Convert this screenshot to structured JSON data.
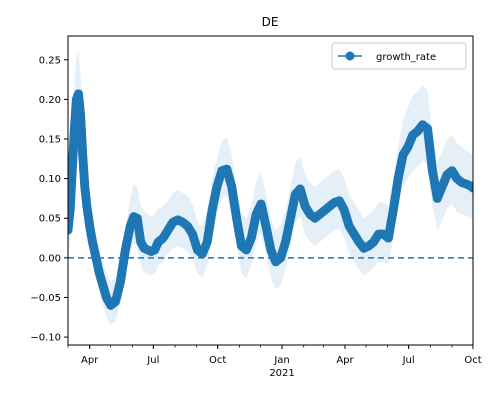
{
  "chart_data": {
    "type": "line",
    "title": "DE",
    "xlabel": "",
    "ylabel": "",
    "x_axis": {
      "type": "date",
      "range": [
        "2020-03-01",
        "2021-10-01"
      ],
      "major_ticks": [
        {
          "date": "2020-04-01",
          "label": "Apr"
        },
        {
          "date": "2020-07-01",
          "label": "Jul"
        },
        {
          "date": "2020-10-01",
          "label": "Oct"
        },
        {
          "date": "2021-01-01",
          "label": "Jan"
        },
        {
          "date": "2021-04-01",
          "label": "Apr"
        },
        {
          "date": "2021-07-01",
          "label": "Jul"
        },
        {
          "date": "2021-10-01",
          "label": "Oct"
        }
      ],
      "year_label": {
        "date": "2021-01-01",
        "label": "2021"
      }
    },
    "y_axis": {
      "range": [
        -0.11,
        0.28
      ],
      "ticks": [
        -0.1,
        -0.05,
        0.0,
        0.05,
        0.1,
        0.15,
        0.2,
        0.25
      ],
      "tick_labels": [
        "−0.10",
        "−0.05",
        "0.00",
        "0.05",
        "0.10",
        "0.15",
        "0.20",
        "0.25"
      ]
    },
    "reference_line": {
      "y": 0.0,
      "style": "dashed",
      "color": "#1f77b4"
    },
    "legend": {
      "position": "top-right",
      "entries": [
        "growth_rate"
      ]
    },
    "series": [
      {
        "name": "growth_rate",
        "color": "#1f77b4",
        "band_color": "#c6dbef",
        "x": [
          "2020-03-01",
          "2020-03-04",
          "2020-03-07",
          "2020-03-10",
          "2020-03-13",
          "2020-03-16",
          "2020-03-19",
          "2020-03-22",
          "2020-03-25",
          "2020-03-28",
          "2020-04-01",
          "2020-04-05",
          "2020-04-10",
          "2020-04-15",
          "2020-04-20",
          "2020-04-25",
          "2020-05-01",
          "2020-05-08",
          "2020-05-15",
          "2020-05-22",
          "2020-05-29",
          "2020-06-03",
          "2020-06-08",
          "2020-06-13",
          "2020-06-18",
          "2020-06-23",
          "2020-06-28",
          "2020-07-03",
          "2020-07-08",
          "2020-07-15",
          "2020-07-22",
          "2020-07-29",
          "2020-08-05",
          "2020-08-12",
          "2020-08-19",
          "2020-08-26",
          "2020-09-02",
          "2020-09-09",
          "2020-09-16",
          "2020-09-23",
          "2020-09-30",
          "2020-10-07",
          "2020-10-14",
          "2020-10-21",
          "2020-10-28",
          "2020-11-04",
          "2020-11-11",
          "2020-11-18",
          "2020-11-25",
          "2020-12-02",
          "2020-12-09",
          "2020-12-16",
          "2020-12-23",
          "2020-12-30",
          "2021-01-06",
          "2021-01-13",
          "2021-01-20",
          "2021-01-27",
          "2021-02-03",
          "2021-02-10",
          "2021-02-17",
          "2021-02-24",
          "2021-03-03",
          "2021-03-10",
          "2021-03-17",
          "2021-03-24",
          "2021-03-31",
          "2021-04-07",
          "2021-04-14",
          "2021-04-21",
          "2021-04-28",
          "2021-05-05",
          "2021-05-12",
          "2021-05-19",
          "2021-05-26",
          "2021-06-02",
          "2021-06-09",
          "2021-06-16",
          "2021-06-23",
          "2021-06-30",
          "2021-07-07",
          "2021-07-14",
          "2021-07-21",
          "2021-07-28",
          "2021-08-04",
          "2021-08-11",
          "2021-08-18",
          "2021-08-25",
          "2021-09-01",
          "2021-09-08",
          "2021-09-15",
          "2021-09-22",
          "2021-09-29",
          "2021-10-01"
        ],
        "values": [
          0.035,
          0.06,
          0.11,
          0.16,
          0.2,
          0.207,
          0.18,
          0.13,
          0.09,
          0.065,
          0.04,
          0.02,
          0.0,
          -0.02,
          -0.035,
          -0.05,
          -0.06,
          -0.055,
          -0.03,
          0.01,
          0.04,
          0.052,
          0.05,
          0.02,
          0.012,
          0.01,
          0.008,
          0.01,
          0.02,
          0.025,
          0.035,
          0.045,
          0.048,
          0.045,
          0.04,
          0.03,
          0.01,
          0.005,
          0.02,
          0.06,
          0.09,
          0.11,
          0.112,
          0.09,
          0.05,
          0.015,
          0.01,
          0.025,
          0.055,
          0.068,
          0.04,
          0.01,
          -0.005,
          0.0,
          0.02,
          0.05,
          0.08,
          0.087,
          0.065,
          0.055,
          0.05,
          0.055,
          0.06,
          0.065,
          0.07,
          0.072,
          0.06,
          0.04,
          0.03,
          0.02,
          0.012,
          0.015,
          0.02,
          0.03,
          0.03,
          0.025,
          0.06,
          0.1,
          0.13,
          0.14,
          0.155,
          0.16,
          0.168,
          0.163,
          0.11,
          0.075,
          0.09,
          0.105,
          0.11,
          0.1,
          0.095,
          0.093,
          0.09,
          0.088
        ],
        "band_upper": [
          0.08,
          0.11,
          0.17,
          0.22,
          0.255,
          0.26,
          0.235,
          0.18,
          0.13,
          0.1,
          0.07,
          0.05,
          0.03,
          0.01,
          -0.005,
          -0.02,
          -0.03,
          -0.025,
          0.0,
          0.04,
          0.075,
          0.092,
          0.09,
          0.065,
          0.058,
          0.055,
          0.052,
          0.055,
          0.062,
          0.065,
          0.072,
          0.082,
          0.085,
          0.082,
          0.078,
          0.068,
          0.045,
          0.04,
          0.06,
          0.1,
          0.125,
          0.148,
          0.152,
          0.13,
          0.09,
          0.055,
          0.05,
          0.065,
          0.095,
          0.108,
          0.08,
          0.05,
          0.035,
          0.04,
          0.06,
          0.09,
          0.12,
          0.128,
          0.105,
          0.095,
          0.09,
          0.095,
          0.1,
          0.105,
          0.11,
          0.112,
          0.1,
          0.08,
          0.07,
          0.06,
          0.05,
          0.055,
          0.06,
          0.07,
          0.07,
          0.065,
          0.1,
          0.14,
          0.175,
          0.19,
          0.205,
          0.21,
          0.218,
          0.212,
          0.16,
          0.12,
          0.135,
          0.15,
          0.155,
          0.145,
          0.14,
          0.135,
          0.13,
          0.128
        ],
        "band_lower": [
          0.0,
          0.02,
          0.06,
          0.11,
          0.15,
          0.16,
          0.135,
          0.085,
          0.05,
          0.03,
          0.01,
          -0.005,
          -0.025,
          -0.045,
          -0.06,
          -0.075,
          -0.085,
          -0.08,
          -0.055,
          -0.02,
          0.008,
          0.018,
          0.015,
          -0.01,
          -0.018,
          -0.02,
          -0.022,
          -0.02,
          -0.01,
          -0.005,
          0.005,
          0.012,
          0.015,
          0.012,
          0.008,
          -0.002,
          -0.02,
          -0.025,
          -0.01,
          0.025,
          0.055,
          0.075,
          0.078,
          0.055,
          0.015,
          -0.02,
          -0.025,
          -0.01,
          0.02,
          0.032,
          0.005,
          -0.025,
          -0.04,
          -0.035,
          -0.015,
          0.015,
          0.045,
          0.052,
          0.03,
          0.02,
          0.015,
          0.02,
          0.025,
          0.03,
          0.035,
          0.037,
          0.025,
          0.005,
          -0.005,
          -0.015,
          -0.022,
          -0.018,
          -0.012,
          -0.005,
          -0.005,
          -0.01,
          0.025,
          0.065,
          0.09,
          0.1,
          0.11,
          0.115,
          0.122,
          0.118,
          0.065,
          0.035,
          0.048,
          0.062,
          0.068,
          0.058,
          0.055,
          0.053,
          0.05,
          0.048
        ]
      }
    ]
  }
}
